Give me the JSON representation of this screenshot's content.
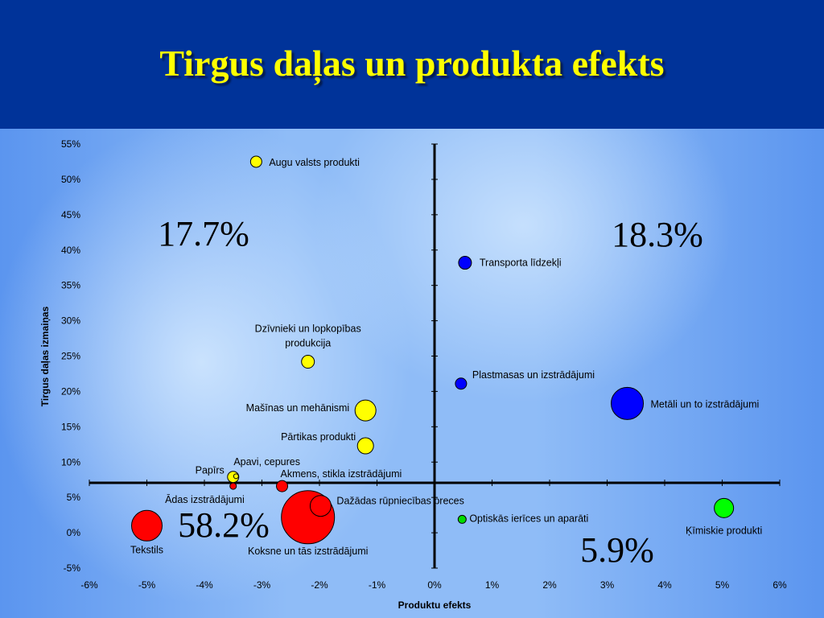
{
  "slide": {
    "title": "Tirgus daļas un produkta efekts"
  },
  "chart_data": {
    "type": "scatter",
    "title": "",
    "xlabel": "Produktu efekts",
    "ylabel": "Tirgus daļas izmaiņas",
    "xlim": [
      -6,
      6
    ],
    "ylim": [
      -5,
      55
    ],
    "xticks": [
      -6,
      -5,
      -4,
      -3,
      -2,
      -1,
      0,
      1,
      2,
      3,
      4,
      5,
      6
    ],
    "yticks": [
      -5,
      0,
      5,
      10,
      15,
      20,
      25,
      30,
      35,
      40,
      45,
      50,
      55
    ],
    "tick_suffix": "%",
    "grid": false,
    "points": [
      {
        "label": [
          "Augu valsts produkti"
        ],
        "x": -3.1,
        "y": 52.5,
        "color": "#ffff00"
      },
      {
        "label": [
          "Dzīvnieki un lopkopības",
          "produkcija"
        ],
        "x": -2.2,
        "y": 24.2,
        "color": "#ffff00"
      },
      {
        "label": [
          "Mašīnas un mehānismi"
        ],
        "x": -1.2,
        "y": 17.3,
        "color": "#ffff00"
      },
      {
        "label": [
          "Pārtikas produkti"
        ],
        "x": -1.2,
        "y": 12.3,
        "color": "#ffff00"
      },
      {
        "label": [
          "Apavi, cepures"
        ],
        "x": -3.45,
        "y": 8.0,
        "color": "#ffff00"
      },
      {
        "label": [
          "Papīrs"
        ],
        "x": -3.5,
        "y": 7.9,
        "color": "#ffff00"
      },
      {
        "label": [
          "Akmens, stikla izstrādājumi"
        ],
        "x": -2.65,
        "y": 6.6,
        "color": "#ff0000"
      },
      {
        "label": [
          "Ādas izstrādājumi"
        ],
        "x": -3.5,
        "y": 6.6,
        "color": "#ff0000"
      },
      {
        "label": [
          "Dažādas rūpniecības preces"
        ],
        "x": -1.98,
        "y": 3.8,
        "color": "#ff0000"
      },
      {
        "label": [
          "Koksne un tās izstrādājumi"
        ],
        "x": -2.2,
        "y": 2.2,
        "color": "#ff0000"
      },
      {
        "label": [
          "Tekstils"
        ],
        "x": -5.0,
        "y": 1.0,
        "color": "#ff0000"
      },
      {
        "label": [
          "Transporta līdzekļi"
        ],
        "x": 0.53,
        "y": 38.2,
        "color": "#0000ff"
      },
      {
        "label": [
          "Plastmasas un izstrādājumi"
        ],
        "x": 0.46,
        "y": 21.1,
        "color": "#0000ff"
      },
      {
        "label": [
          "Metāli un to  izstrādājumi"
        ],
        "x": 3.35,
        "y": 18.3,
        "color": "#0000ff"
      },
      {
        "label": [
          "Optiskās ierīces un aparāti"
        ],
        "x": 0.48,
        "y": 1.9,
        "color": "#00dd00"
      },
      {
        "label": [
          "Ķīmiskie produkti"
        ],
        "x": 5.03,
        "y": 3.5,
        "color": "#00ff00"
      }
    ],
    "annotations": [
      {
        "text": "17.7%",
        "quadrant": "top-left"
      },
      {
        "text": "18.3%",
        "quadrant": "top-right"
      },
      {
        "text": "58.2%",
        "quadrant": "bottom-left"
      },
      {
        "text": "5.9%",
        "quadrant": "bottom-right"
      }
    ]
  }
}
